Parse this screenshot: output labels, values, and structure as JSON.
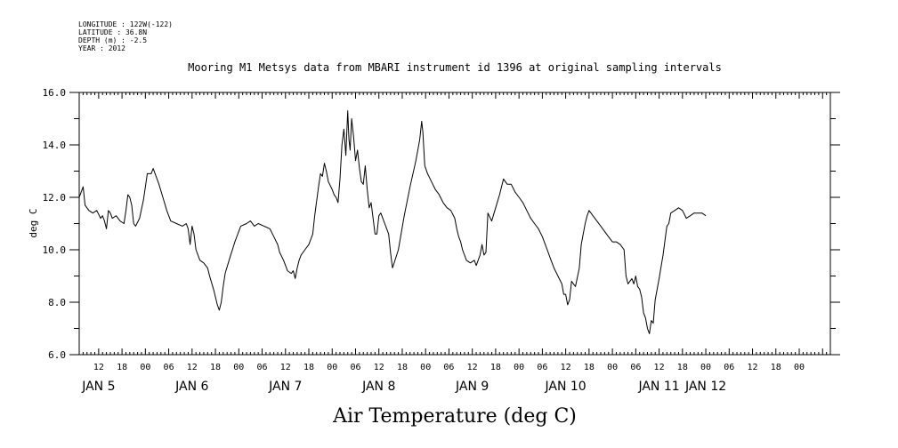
{
  "header": {
    "longitude": "LONGITUDE : 122W(-122)",
    "latitude": "LATITUDE : 36.8N",
    "depth": "DEPTH (m) : -2.5",
    "year": "YEAR : 2012"
  },
  "chart_data": {
    "type": "line",
    "title": "Mooring M1 Metsys data from MBARI instrument id 1396 at original sampling intervals",
    "xlabel": "Air Temperature (deg C)",
    "ylabel": "deg C",
    "ylim": [
      6.0,
      16.0
    ],
    "yticks": [
      "6.0",
      "8.0",
      "10.0",
      "12.0",
      "14.0",
      "16.0"
    ],
    "xlim_hours": [
      7,
      200
    ],
    "x_hour_labels": [
      "12",
      "18",
      "00",
      "06",
      "12",
      "18",
      "00",
      "06",
      "12",
      "18",
      "00",
      "06",
      "12",
      "18",
      "00",
      "06",
      "12",
      "18",
      "00",
      "06",
      "12",
      "18",
      "00",
      "06",
      "12",
      "18",
      "00",
      "06",
      "12",
      "18",
      "00"
    ],
    "x_day_labels": [
      {
        "label": "JAN  5",
        "hour": 12
      },
      {
        "label": "JAN  6",
        "hour": 36
      },
      {
        "label": "JAN  7",
        "hour": 60
      },
      {
        "label": "JAN  8",
        "hour": 84
      },
      {
        "label": "JAN  9",
        "hour": 108
      },
      {
        "label": "JAN 10",
        "hour": 132
      },
      {
        "label": "JAN 11",
        "hour": 156
      },
      {
        "label": "JAN 12",
        "hour": 168
      }
    ],
    "grid": false,
    "series": [
      {
        "values": [
          [
            7,
            12.0
          ],
          [
            8,
            12.4
          ],
          [
            8.5,
            11.7
          ],
          [
            9.5,
            11.5
          ],
          [
            10.5,
            11.4
          ],
          [
            11.5,
            11.5
          ],
          [
            12.5,
            11.2
          ],
          [
            13,
            11.3
          ],
          [
            13.5,
            11.1
          ],
          [
            14,
            10.8
          ],
          [
            14.5,
            11.5
          ],
          [
            15,
            11.4
          ],
          [
            15.5,
            11.2
          ],
          [
            16.5,
            11.3
          ],
          [
            17.5,
            11.1
          ],
          [
            18.5,
            11.0
          ],
          [
            19,
            11.5
          ],
          [
            19.5,
            12.1
          ],
          [
            20,
            12.0
          ],
          [
            20.5,
            11.7
          ],
          [
            21,
            11.0
          ],
          [
            21.5,
            10.9
          ],
          [
            22.5,
            11.2
          ],
          [
            23.5,
            11.9
          ],
          [
            24.5,
            12.9
          ],
          [
            25.5,
            12.9
          ],
          [
            26,
            13.1
          ],
          [
            26.5,
            12.9
          ],
          [
            27.5,
            12.5
          ],
          [
            28.5,
            12.0
          ],
          [
            29.5,
            11.5
          ],
          [
            30.5,
            11.1
          ],
          [
            32,
            11.0
          ],
          [
            33.5,
            10.9
          ],
          [
            34.5,
            11.0
          ],
          [
            35,
            10.8
          ],
          [
            35.5,
            10.2
          ],
          [
            36,
            10.9
          ],
          [
            36.5,
            10.6
          ],
          [
            37,
            10.0
          ],
          [
            38,
            9.6
          ],
          [
            39,
            9.5
          ],
          [
            40,
            9.3
          ],
          [
            40.5,
            9.0
          ],
          [
            41.5,
            8.5
          ],
          [
            42.5,
            7.9
          ],
          [
            43,
            7.7
          ],
          [
            43.5,
            8.0
          ],
          [
            44,
            8.6
          ],
          [
            44.5,
            9.1
          ],
          [
            45.5,
            9.6
          ],
          [
            47,
            10.3
          ],
          [
            48.5,
            10.9
          ],
          [
            50,
            11.0
          ],
          [
            51,
            11.1
          ],
          [
            52,
            10.9
          ],
          [
            53,
            11.0
          ],
          [
            54.5,
            10.9
          ],
          [
            56,
            10.8
          ],
          [
            57,
            10.5
          ],
          [
            58,
            10.2
          ],
          [
            58.5,
            9.9
          ],
          [
            59.5,
            9.6
          ],
          [
            60.5,
            9.2
          ],
          [
            61.5,
            9.1
          ],
          [
            62,
            9.2
          ],
          [
            62.5,
            8.9
          ],
          [
            63,
            9.3
          ],
          [
            63.5,
            9.6
          ],
          [
            64,
            9.8
          ],
          [
            65,
            10.0
          ],
          [
            66,
            10.2
          ],
          [
            67,
            10.6
          ],
          [
            67.5,
            11.3
          ],
          [
            68.5,
            12.4
          ],
          [
            69,
            12.9
          ],
          [
            69.5,
            12.8
          ],
          [
            70,
            13.3
          ],
          [
            70.5,
            13.0
          ],
          [
            71,
            12.6
          ],
          [
            72,
            12.3
          ],
          [
            72.5,
            12.1
          ],
          [
            73,
            12.0
          ],
          [
            73.5,
            11.8
          ],
          [
            74,
            12.7
          ],
          [
            74.5,
            14.0
          ],
          [
            75,
            14.6
          ],
          [
            75.5,
            13.6
          ],
          [
            76,
            15.3
          ],
          [
            76.3,
            14.2
          ],
          [
            76.6,
            13.8
          ],
          [
            77,
            15.0
          ],
          [
            77.5,
            14.3
          ],
          [
            78,
            13.4
          ],
          [
            78.5,
            13.8
          ],
          [
            79,
            13.1
          ],
          [
            79.5,
            12.6
          ],
          [
            80,
            12.5
          ],
          [
            80.5,
            13.2
          ],
          [
            81,
            12.3
          ],
          [
            81.5,
            11.6
          ],
          [
            82,
            11.8
          ],
          [
            82.5,
            11.2
          ],
          [
            83,
            10.6
          ],
          [
            83.5,
            10.6
          ],
          [
            84,
            11.3
          ],
          [
            84.5,
            11.4
          ],
          [
            85.5,
            11.0
          ],
          [
            86.5,
            10.6
          ],
          [
            87,
            9.9
          ],
          [
            87.5,
            9.3
          ]
        ]
      },
      {
        "values": [
          [
            87.5,
            9.3
          ],
          [
            89,
            10.0
          ],
          [
            90.5,
            11.3
          ],
          [
            92,
            12.4
          ],
          [
            93.5,
            13.4
          ],
          [
            94.5,
            14.2
          ],
          [
            95,
            14.9
          ],
          [
            95.3,
            14.5
          ],
          [
            95.8,
            13.2
          ],
          [
            96.5,
            12.9
          ],
          [
            97.5,
            12.6
          ],
          [
            98.5,
            12.3
          ],
          [
            99.5,
            12.1
          ],
          [
            100.5,
            11.8
          ],
          [
            101.5,
            11.6
          ],
          [
            102.5,
            11.5
          ],
          [
            103.5,
            11.2
          ],
          [
            104,
            10.8
          ],
          [
            104.5,
            10.5
          ],
          [
            105,
            10.3
          ],
          [
            105.5,
            10.0
          ],
          [
            106.5,
            9.6
          ],
          [
            107.5,
            9.5
          ],
          [
            108.5,
            9.6
          ],
          [
            109,
            9.4
          ],
          [
            110,
            9.8
          ],
          [
            110.5,
            10.2
          ],
          [
            111,
            9.8
          ],
          [
            111.5,
            9.9
          ],
          [
            112,
            11.4
          ],
          [
            113,
            11.1
          ],
          [
            114,
            11.6
          ],
          [
            115,
            12.1
          ],
          [
            116,
            12.7
          ],
          [
            117,
            12.5
          ],
          [
            118,
            12.5
          ],
          [
            119,
            12.2
          ],
          [
            120,
            12.0
          ],
          [
            121,
            11.8
          ],
          [
            122,
            11.5
          ],
          [
            123,
            11.2
          ],
          [
            124,
            11.0
          ],
          [
            125,
            10.8
          ],
          [
            126,
            10.5
          ],
          [
            127,
            10.1
          ],
          [
            128,
            9.7
          ],
          [
            129,
            9.3
          ],
          [
            130,
            9.0
          ],
          [
            131,
            8.7
          ],
          [
            131.5,
            8.3
          ],
          [
            132,
            8.3
          ],
          [
            132.5,
            7.9
          ],
          [
            133,
            8.1
          ],
          [
            133.5,
            8.8
          ],
          [
            134,
            8.7
          ],
          [
            134.5,
            8.6
          ],
          [
            135.5,
            9.3
          ],
          [
            136,
            10.2
          ],
          [
            136.5,
            10.6
          ],
          [
            137,
            11.0
          ],
          [
            137.5,
            11.3
          ],
          [
            138,
            11.5
          ],
          [
            139,
            11.3
          ],
          [
            140,
            11.1
          ],
          [
            141,
            10.9
          ],
          [
            142,
            10.7
          ],
          [
            143,
            10.5
          ],
          [
            144,
            10.3
          ],
          [
            145,
            10.3
          ],
          [
            146,
            10.2
          ],
          [
            147,
            10.0
          ],
          [
            147.5,
            9.0
          ],
          [
            148,
            8.7
          ],
          [
            148.5,
            8.8
          ],
          [
            149,
            8.9
          ],
          [
            149.5,
            8.7
          ],
          [
            150,
            9.0
          ],
          [
            150.5,
            8.6
          ],
          [
            151,
            8.5
          ],
          [
            151.5,
            8.2
          ],
          [
            152,
            7.6
          ],
          [
            152.5,
            7.4
          ],
          [
            153,
            7.0
          ],
          [
            153.5,
            6.8
          ],
          [
            154,
            7.3
          ],
          [
            154.5,
            7.2
          ],
          [
            155,
            8.1
          ],
          [
            156,
            8.9
          ],
          [
            157,
            9.8
          ],
          [
            158,
            10.9
          ],
          [
            158.5,
            11.0
          ],
          [
            159,
            11.4
          ],
          [
            160,
            11.5
          ],
          [
            161,
            11.6
          ],
          [
            162,
            11.5
          ],
          [
            163,
            11.2
          ],
          [
            164,
            11.3
          ],
          [
            165,
            11.4
          ],
          [
            166,
            11.4
          ],
          [
            167,
            11.4
          ],
          [
            168,
            11.3
          ]
        ]
      }
    ]
  }
}
